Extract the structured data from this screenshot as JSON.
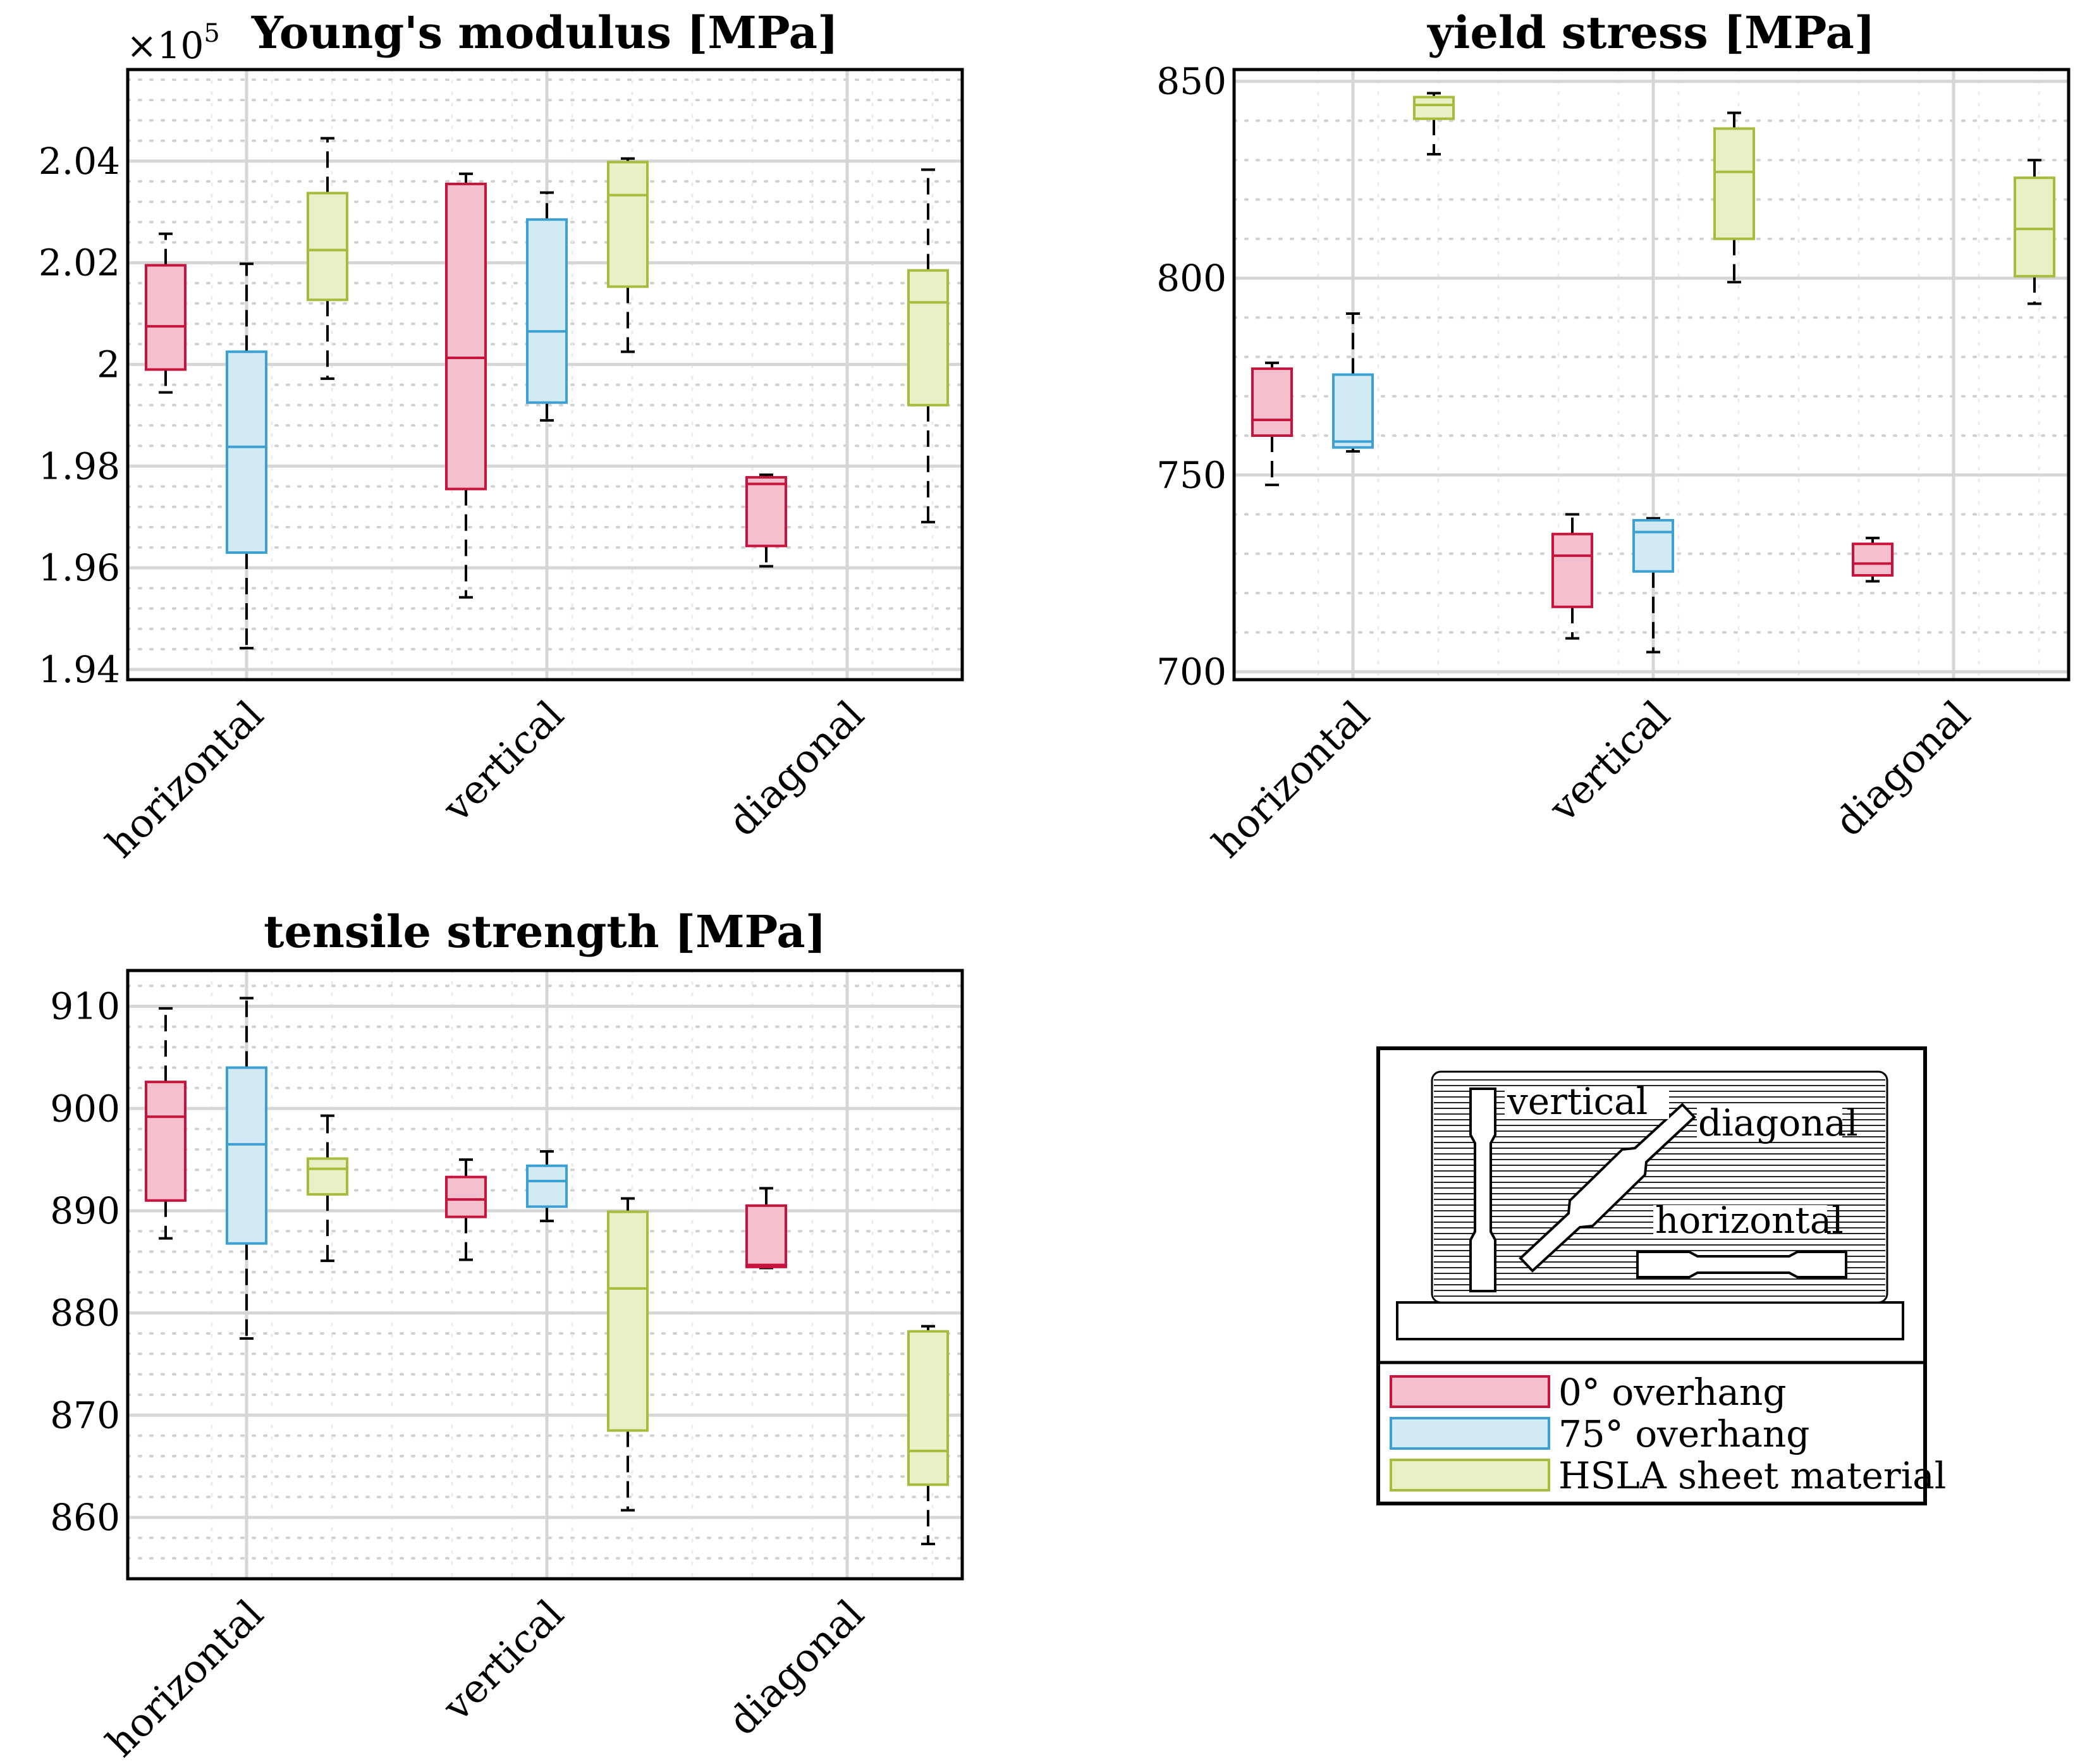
{
  "colors": {
    "zero": {
      "stroke": "#c8143c",
      "fill": "#f4c0ce"
    },
    "seventyfive": {
      "stroke": "#3ca0d2",
      "fill": "#d2eaf4"
    },
    "hsla": {
      "stroke": "#a6bc3c",
      "fill": "#e8f0c6"
    },
    "whisker": "#000000",
    "grid_major": "#d6d6d6",
    "grid_minor": "#d0d0d0"
  },
  "chart_data": [
    {
      "type": "box",
      "title": "Young's modulus [MPa]",
      "multiplier_label": "×10",
      "multiplier_exponent": "5",
      "categories": [
        "horizontal",
        "vertical",
        "diagonal"
      ],
      "ylim": [
        1.938,
        2.058
      ],
      "yticks": [
        1.94,
        1.96,
        1.98,
        2.0,
        2.02,
        2.04
      ],
      "ytick_labels": [
        "1.94",
        "1.96",
        "1.98",
        "2",
        "2.02",
        "2.04"
      ],
      "ygrid_minor_step": 0.004,
      "series": [
        {
          "name": "0° overhang",
          "key": "zero",
          "boxes": [
            {
              "min": 1.9945,
              "q1": 1.999,
              "median": 2.0075,
              "q3": 2.0195,
              "max": 2.0257
            },
            {
              "min": 1.9542,
              "q1": 1.9755,
              "median": 2.0013,
              "q3": 2.0355,
              "max": 2.0375
            },
            {
              "min": 1.9603,
              "q1": 1.9643,
              "median": 1.9765,
              "q3": 1.9778,
              "max": 1.9783
            }
          ]
        },
        {
          "name": "75° overhang",
          "key": "seventyfive",
          "boxes": [
            {
              "min": 1.9442,
              "q1": 1.963,
              "median": 1.9838,
              "q3": 2.0025,
              "max": 2.0198
            },
            {
              "min": 1.989,
              "q1": 1.9925,
              "median": 2.0065,
              "q3": 2.0285,
              "max": 2.0338
            },
            null
          ]
        },
        {
          "name": "HSLA sheet material",
          "key": "hsla",
          "boxes": [
            {
              "min": 1.9972,
              "q1": 2.0127,
              "median": 2.0225,
              "q3": 2.0337,
              "max": 2.0445
            },
            {
              "min": 2.0025,
              "q1": 2.0153,
              "median": 2.0333,
              "q3": 2.0398,
              "max": 2.0405
            },
            {
              "min": 1.969,
              "q1": 1.992,
              "median": 2.0122,
              "q3": 2.0185,
              "max": 2.0383
            }
          ]
        }
      ]
    },
    {
      "type": "box",
      "title": "yield stress [MPa]",
      "categories": [
        "horizontal",
        "vertical",
        "diagonal"
      ],
      "ylim": [
        698,
        853
      ],
      "yticks": [
        700,
        750,
        800,
        850
      ],
      "ytick_labels": [
        "700",
        "750",
        "800",
        "850"
      ],
      "ygrid_minor_step": 10,
      "series": [
        {
          "name": "0° overhang",
          "key": "zero",
          "boxes": [
            {
              "min": 747.5,
              "q1": 760,
              "median": 764,
              "q3": 777,
              "max": 778.5
            },
            {
              "min": 708.5,
              "q1": 716.5,
              "median": 729.5,
              "q3": 735,
              "max": 740
            },
            {
              "min": 723,
              "q1": 724.5,
              "median": 727.5,
              "q3": 732.5,
              "max": 734
            }
          ]
        },
        {
          "name": "75° overhang",
          "key": "seventyfive",
          "boxes": [
            {
              "min": 756,
              "q1": 757,
              "median": 758.5,
              "q3": 775.5,
              "max": 791
            },
            {
              "min": 705,
              "q1": 725.5,
              "median": 735.5,
              "q3": 738.5,
              "max": 739
            },
            null
          ]
        },
        {
          "name": "HSLA sheet material",
          "key": "hsla",
          "boxes": [
            {
              "min": 831.5,
              "q1": 840.5,
              "median": 844,
              "q3": 846,
              "max": 847
            },
            {
              "min": 799,
              "q1": 810,
              "median": 827,
              "q3": 838,
              "max": 842
            },
            {
              "min": 793.5,
              "q1": 800.5,
              "median": 812.5,
              "q3": 825.5,
              "max": 830
            }
          ]
        }
      ]
    },
    {
      "type": "box",
      "title": "tensile strength [MPa]",
      "categories": [
        "horizontal",
        "vertical",
        "diagonal"
      ],
      "ylim": [
        854,
        913.5
      ],
      "yticks": [
        860,
        870,
        880,
        890,
        900,
        910
      ],
      "ytick_labels": [
        "860",
        "870",
        "880",
        "890",
        "900",
        "910"
      ],
      "ygrid_minor_step": 2,
      "series": [
        {
          "name": "0° overhang",
          "key": "zero",
          "boxes": [
            {
              "min": 887.3,
              "q1": 891,
              "median": 899.2,
              "q3": 902.6,
              "max": 909.8
            },
            {
              "min": 885.2,
              "q1": 889.4,
              "median": 891.1,
              "q3": 893.3,
              "max": 895
            },
            {
              "min": 884.4,
              "q1": 884.5,
              "median": 884.7,
              "q3": 890.5,
              "max": 892.2
            }
          ]
        },
        {
          "name": "75° overhang",
          "key": "seventyfive",
          "boxes": [
            {
              "min": 877.5,
              "q1": 886.8,
              "median": 896.5,
              "q3": 904,
              "max": 910.8
            },
            {
              "min": 889,
              "q1": 890.4,
              "median": 892.9,
              "q3": 894.4,
              "max": 895.8
            },
            null
          ]
        },
        {
          "name": "HSLA sheet material",
          "key": "hsla",
          "boxes": [
            {
              "min": 885.1,
              "q1": 891.6,
              "median": 894.1,
              "q3": 895.1,
              "max": 899.3
            },
            {
              "min": 860.7,
              "q1": 868.5,
              "median": 882.4,
              "q3": 889.9,
              "max": 891.2
            },
            {
              "min": 857.4,
              "q1": 863.2,
              "median": 866.5,
              "q3": 878.2,
              "max": 878.7
            }
          ]
        }
      ]
    }
  ],
  "schematic": {
    "label_vertical": "vertical",
    "label_diagonal": "diagonal",
    "label_horizontal": "horizontal"
  },
  "legend": {
    "items": [
      {
        "label": "0° overhang",
        "key": "zero"
      },
      {
        "label": "75° overhang",
        "key": "seventyfive"
      },
      {
        "label": "HSLA sheet material",
        "key": "hsla"
      }
    ]
  }
}
